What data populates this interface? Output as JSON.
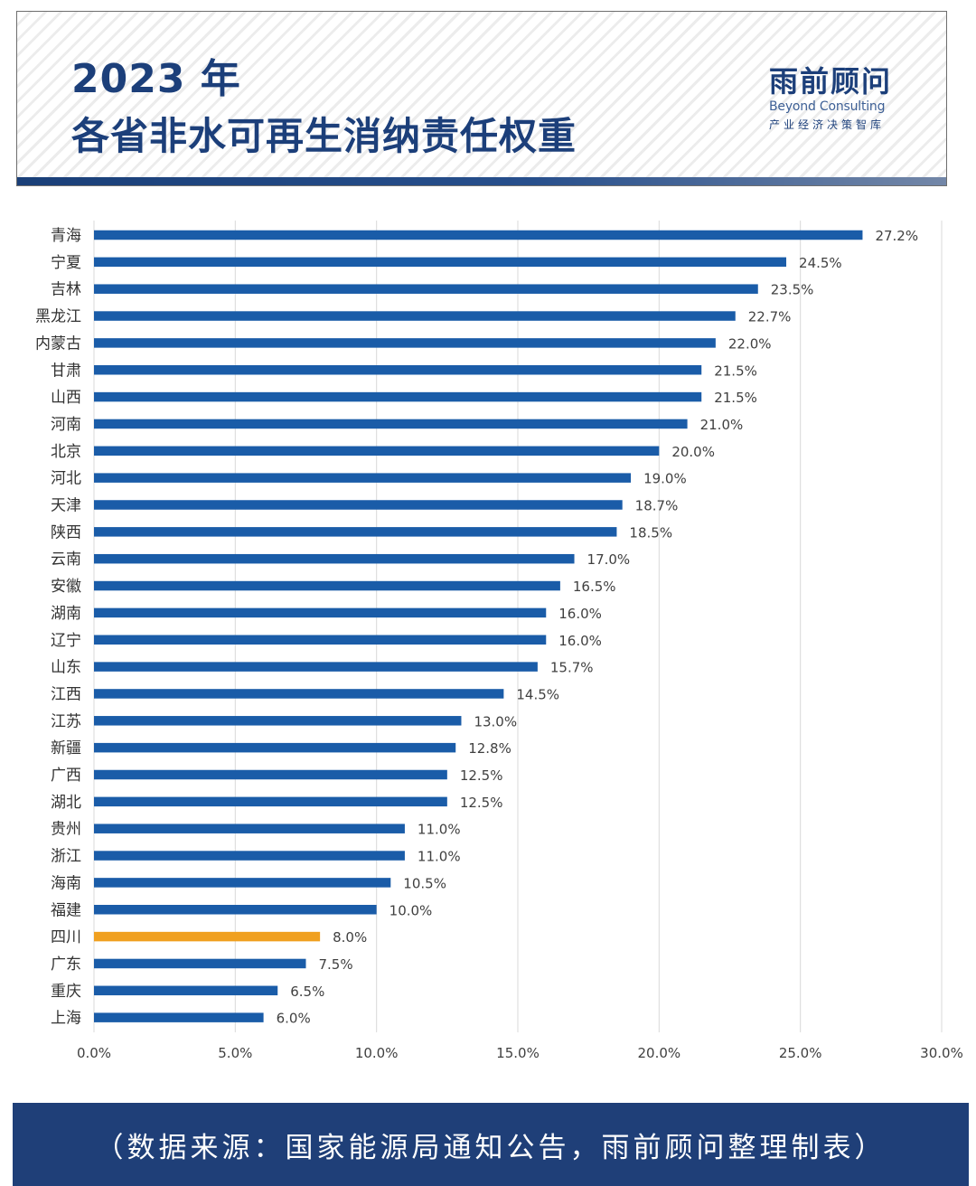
{
  "header": {
    "title_line1": "2023 年",
    "title_line2": "各省非水可再生消纳责任权重",
    "logo_main": "雨前顾问",
    "logo_en": "Beyond Consulting",
    "logo_sub": "产业经济决策智库"
  },
  "chart_data": {
    "type": "bar",
    "orientation": "horizontal",
    "title": "2023 年 各省非水可再生消纳责任权重",
    "xlabel": "",
    "ylabel": "",
    "xlim": [
      0,
      30
    ],
    "x_ticks": [
      "0.0%",
      "5.0%",
      "10.0%",
      "15.0%",
      "20.0%",
      "25.0%",
      "30.0%"
    ],
    "grid": "vertical",
    "categories": [
      "青海",
      "宁夏",
      "吉林",
      "黑龙江",
      "内蒙古",
      "甘肃",
      "山西",
      "河南",
      "北京",
      "河北",
      "天津",
      "陕西",
      "云南",
      "安徽",
      "湖南",
      "辽宁",
      "山东",
      "江西",
      "江苏",
      "新疆",
      "广西",
      "湖北",
      "贵州",
      "浙江",
      "海南",
      "福建",
      "四川",
      "广东",
      "重庆",
      "上海"
    ],
    "values": [
      27.2,
      24.5,
      23.5,
      22.7,
      22.0,
      21.5,
      21.5,
      21.0,
      20.0,
      19.0,
      18.7,
      18.5,
      17.0,
      16.5,
      16.0,
      16.0,
      15.7,
      14.5,
      13.0,
      12.8,
      12.5,
      12.5,
      11.0,
      11.0,
      10.5,
      10.0,
      8.0,
      7.5,
      6.5,
      6.0
    ],
    "value_labels": [
      "27.2%",
      "24.5%",
      "23.5%",
      "22.7%",
      "22.0%",
      "21.5%",
      "21.5%",
      "21.0%",
      "20.0%",
      "19.0%",
      "18.7%",
      "18.5%",
      "17.0%",
      "16.5%",
      "16.0%",
      "16.0%",
      "15.7%",
      "14.5%",
      "13.0%",
      "12.8%",
      "12.5%",
      "12.5%",
      "11.0%",
      "11.0%",
      "10.5%",
      "10.0%",
      "8.0%",
      "7.5%",
      "6.5%",
      "6.0%"
    ],
    "highlight": "四川",
    "colors": {
      "bar": "#1a5ca8",
      "highlight": "#f0a020",
      "grid": "#d9d9d9",
      "label": "#404040"
    }
  },
  "footer": {
    "source": "（数据来源：国家能源局通知公告，雨前顾问整理制表）"
  }
}
